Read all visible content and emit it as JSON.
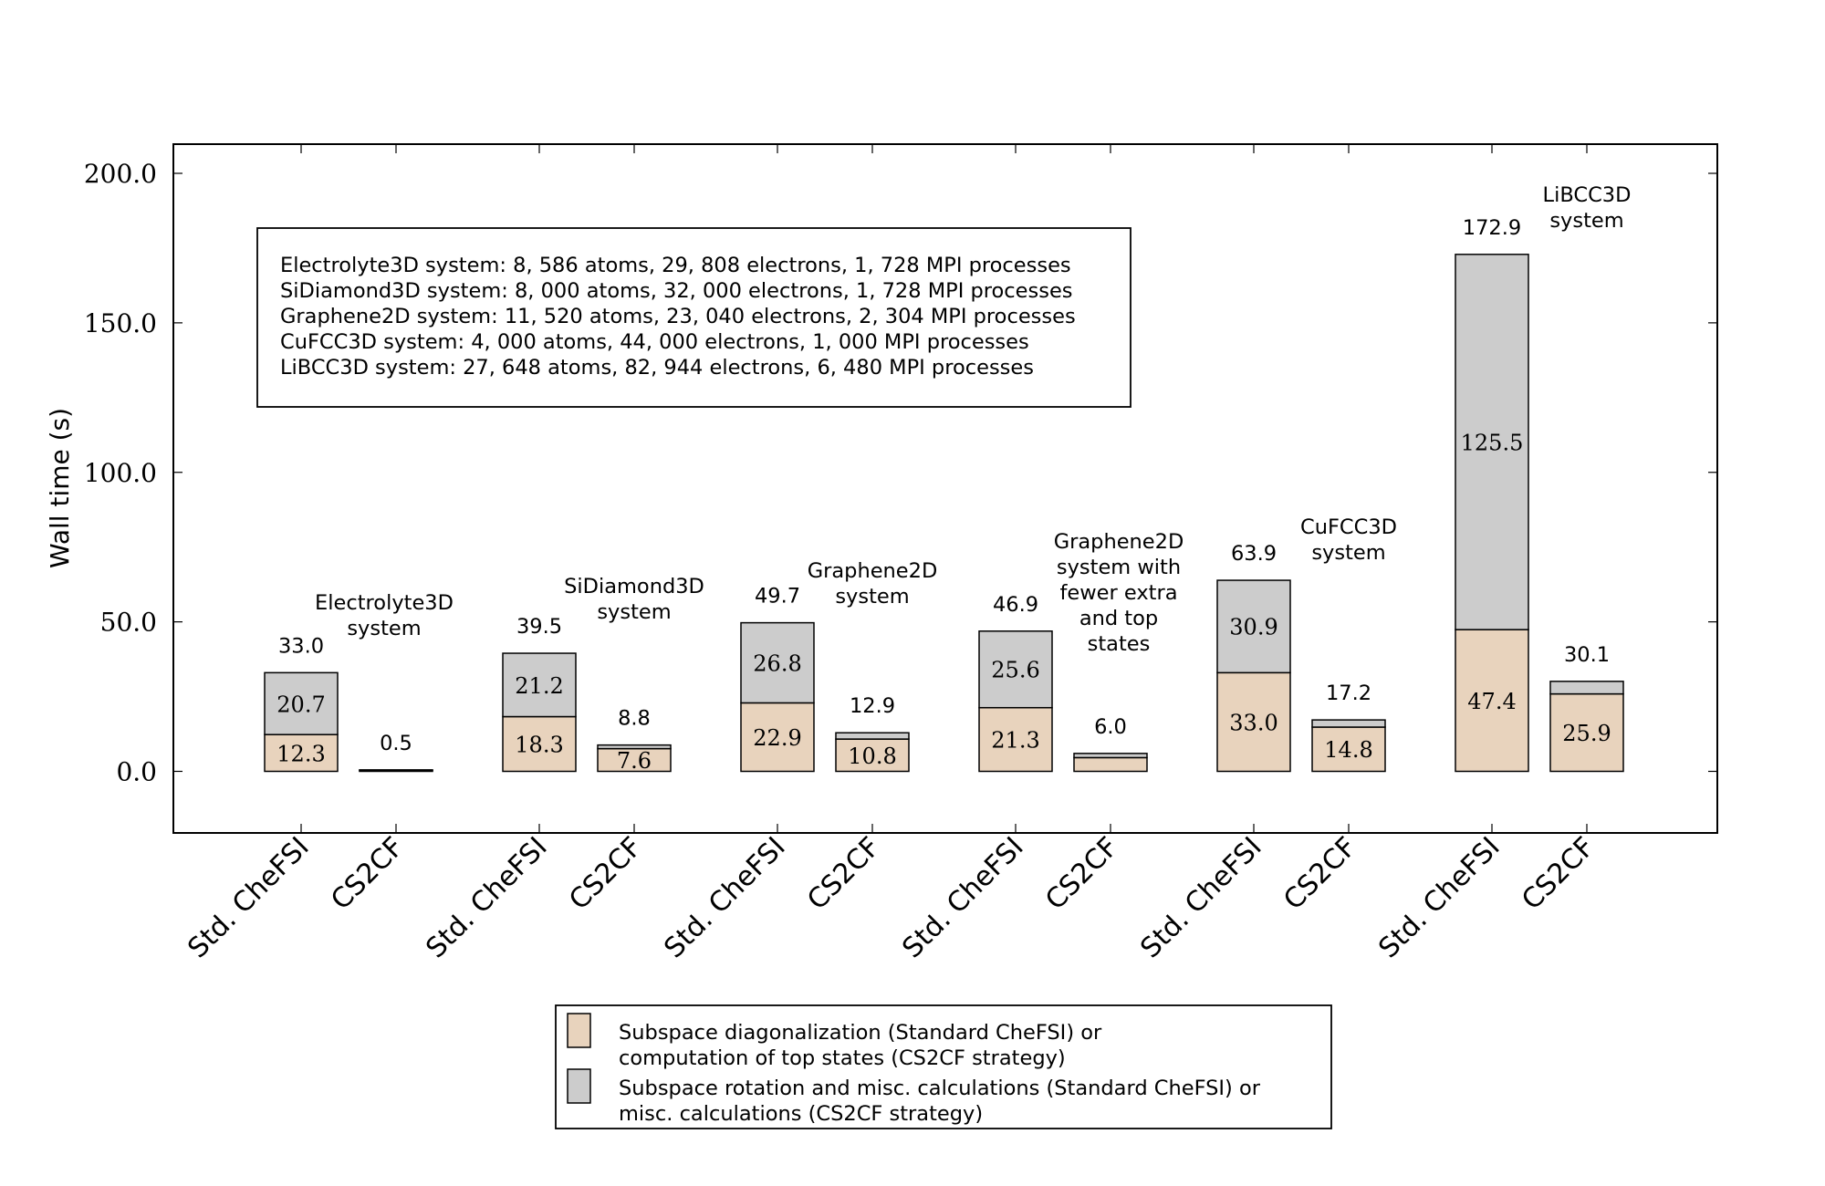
{
  "chart_data": {
    "type": "bar",
    "stacked": true,
    "ylabel": "Wall time (s)",
    "xlabel": "",
    "ylim": [
      -21,
      210
    ],
    "yticks": [
      0,
      50,
      100,
      150,
      200
    ],
    "ytick_labels": [
      "0.0",
      "50.0",
      "100.0",
      "150.0",
      "200.0"
    ],
    "categories": [
      "Std. CheFSI",
      "CS2CF",
      "Std. CheFSI",
      "CS2CF",
      "Std. CheFSI",
      "CS2CF",
      "Std. CheFSI",
      "CS2CF",
      "Std. CheFSI",
      "CS2CF",
      "Std. CheFSI",
      "CS2CF"
    ],
    "series": [
      {
        "name": "Subspace diagonalization (Standard CheFSI) or computation of top states (CS2CF strategy)",
        "color": "#e8d3bd",
        "values": [
          12.3,
          0.3,
          18.3,
          7.6,
          22.9,
          10.8,
          21.3,
          4.6,
          33.0,
          14.8,
          47.4,
          25.9
        ],
        "labels": [
          "12.3",
          "",
          "18.3",
          "7.6",
          "22.9",
          "10.8",
          "21.3",
          "",
          "33.0",
          "14.8",
          "47.4",
          "25.9"
        ]
      },
      {
        "name": "Subspace rotation and misc. calculations (Standard CheFSI) or misc. calculations (CS2CF strategy)",
        "color": "#cccccc",
        "values": [
          20.7,
          0.2,
          21.2,
          1.2,
          26.8,
          2.1,
          25.6,
          1.4,
          30.9,
          2.4,
          125.5,
          4.2
        ],
        "labels": [
          "20.7",
          "",
          "21.2",
          "",
          "26.8",
          "",
          "25.6",
          "",
          "30.9",
          "",
          "125.5",
          ""
        ]
      }
    ],
    "totals": [
      33.0,
      0.5,
      39.5,
      8.8,
      49.7,
      12.9,
      46.9,
      6.0,
      63.9,
      17.2,
      172.9,
      30.1
    ],
    "total_labels": [
      "33.0",
      "0.5",
      "39.5",
      "8.8",
      "49.7",
      "12.9",
      "46.9",
      "6.0",
      "63.9",
      "17.2",
      "172.9",
      "30.1"
    ],
    "group_labels": [
      [
        "Electrolyte3D",
        "system"
      ],
      [
        "SiDiamond3D",
        "system"
      ],
      [
        "Graphene2D",
        "system"
      ],
      [
        "Graphene2D",
        "system with",
        "fewer extra",
        "and top",
        "states"
      ],
      [
        "CuFCC3D",
        "system"
      ],
      [
        "LiBCC3D",
        "system"
      ]
    ],
    "info_box": [
      "Electrolyte3D system: 8, 586 atoms, 29, 808 electrons, 1, 728 MPI processes",
      "SiDiamond3D system: 8, 000 atoms, 32, 000 electrons, 1, 728 MPI processes",
      "Graphene2D system: 11, 520 atoms, 23, 040 electrons, 2, 304 MPI processes",
      "CuFCC3D system: 4, 000 atoms, 44, 000 electrons, 1, 000 MPI processes",
      "LiBCC3D system: 27, 648 atoms, 82, 944 electrons, 6, 480 MPI processes"
    ],
    "legend": [
      {
        "color": "#e8d3bd",
        "lines": [
          "Subspace diagonalization (Standard CheFSI) or",
          "computation of top states (CS2CF strategy)"
        ]
      },
      {
        "color": "#cccccc",
        "lines": [
          "Subspace rotation and misc. calculations (Standard CheFSI) or",
          "misc. calculations (CS2CF strategy)"
        ]
      }
    ],
    "legend_position": "bottom",
    "grid": false
  }
}
